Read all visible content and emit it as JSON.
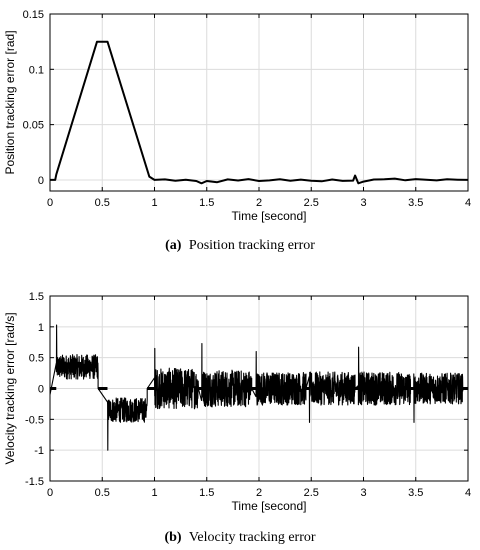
{
  "chart_data": [
    {
      "type": "line",
      "caption_letter": "(a)",
      "caption_text": "Position tracking error",
      "xlabel": "Time [second]",
      "ylabel": "Position tracking error [rad]",
      "xlim": [
        0,
        4
      ],
      "ylim": [
        -0.01,
        0.15
      ],
      "xticks": [
        0,
        0.5,
        1,
        1.5,
        2,
        2.5,
        3,
        3.5,
        4
      ],
      "xtick_labels": [
        "0",
        "0.5",
        "1",
        "1.5",
        "2",
        "2.5",
        "3",
        "3.5",
        "4"
      ],
      "yticks": [
        0,
        0.05,
        0.1,
        0.15
      ],
      "ytick_labels": [
        "0",
        "0.05",
        "0.1",
        "0.15"
      ],
      "grid": true,
      "series": [
        {
          "x": [
            0,
            0.05,
            0.06,
            0.45,
            0.55,
            0.95,
            1.0,
            1.1,
            1.2,
            1.3,
            1.4,
            1.45,
            1.5,
            1.6,
            1.7,
            1.8,
            1.9,
            2.0,
            2.1,
            2.2,
            2.3,
            2.4,
            2.5,
            2.6,
            2.7,
            2.8,
            2.9,
            2.92,
            2.95,
            3.0,
            3.1,
            3.2,
            3.3,
            3.4,
            3.5,
            3.6,
            3.7,
            3.8,
            3.9,
            4.0
          ],
          "y": [
            0,
            0,
            0.005,
            0.125,
            0.125,
            0.003,
            0.0,
            0.0005,
            -0.0008,
            0.0002,
            -0.001,
            -0.003,
            -0.001,
            -0.002,
            0.0005,
            -0.0005,
            0.0008,
            -0.001,
            -0.0004,
            0.0006,
            -0.0008,
            0.0003,
            -0.0007,
            -0.0012,
            0.0004,
            -0.0009,
            -0.0006,
            0.004,
            -0.003,
            -0.0015,
            0.0004,
            0.0006,
            0.0012,
            -0.0003,
            0.0008,
            0.0002,
            -0.0004,
            0.0006,
            0.0002,
            0.0
          ]
        }
      ]
    },
    {
      "type": "line",
      "caption_letter": "(b)",
      "caption_text": "Velocity tracking error",
      "xlabel": "Time [second]",
      "ylabel": "Velocity tracking error [rad/s]",
      "xlim": [
        0,
        4
      ],
      "ylim": [
        -1.5,
        1.5
      ],
      "xticks": [
        0,
        0.5,
        1,
        1.5,
        2,
        2.5,
        3,
        3.5,
        4
      ],
      "xtick_labels": [
        "0",
        "0.5",
        "1",
        "1.5",
        "2",
        "2.5",
        "3",
        "3.5",
        "4"
      ],
      "yticks": [
        -1.5,
        -1,
        -0.5,
        0,
        0.5,
        1,
        1.5
      ],
      "ytick_labels": [
        "-1.5",
        "-1",
        "-0.5",
        "0",
        "0.5",
        "1",
        "1.5"
      ],
      "grid": true,
      "segments": [
        {
          "x0": 0.06,
          "x1": 0.46,
          "mean": 0.35,
          "amp": 0.2,
          "spike": 1.03
        },
        {
          "x0": 0.55,
          "x1": 0.93,
          "mean": -0.35,
          "amp": 0.2,
          "spike": -1.0
        },
        {
          "x0": 1.0,
          "x1": 1.42,
          "mean": 0.0,
          "amp": 0.33,
          "spike": 0.65
        },
        {
          "x0": 1.45,
          "x1": 1.93,
          "mean": 0.0,
          "amp": 0.3,
          "spike": 0.73
        },
        {
          "x0": 1.97,
          "x1": 2.45,
          "mean": 0.0,
          "amp": 0.27,
          "spike": 0.6
        },
        {
          "x0": 2.48,
          "x1": 2.92,
          "mean": 0.0,
          "amp": 0.27,
          "spike": -0.55
        },
        {
          "x0": 2.95,
          "x1": 3.45,
          "mean": 0.0,
          "amp": 0.27,
          "spike": 0.67
        },
        {
          "x0": 3.48,
          "x1": 3.95,
          "mean": 0.0,
          "amp": 0.25,
          "spike": -0.55
        }
      ]
    }
  ]
}
